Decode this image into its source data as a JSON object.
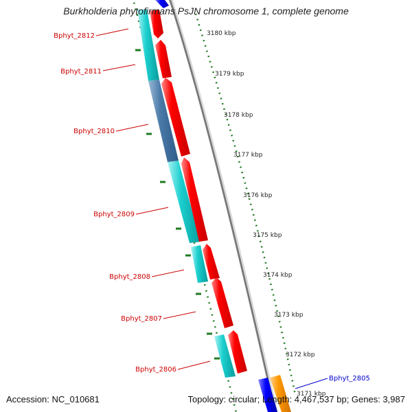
{
  "title": "Burkholderia phytofirmans PsJN chromosome 1, complete genome",
  "accession_text": "Accession: NC_010681",
  "summary_text": "Topology: circular; Length: 4,467,537 bp; Genes: 3,987",
  "colors": {
    "label_red": "#cc0000",
    "label_blue": "#0000cc",
    "forward_gene": "#ff0000",
    "cds_cyan": "#19cccc",
    "cds_blue": "#4a7aa8",
    "axis_gray": "#888888",
    "tick_green": "#207a20",
    "orange": "#ff9900",
    "blue": "#0000ff"
  },
  "scale": {
    "labels": [
      "3180 kbp",
      "3179 kbp",
      "3178 kbp",
      "3177 kbp",
      "3176 kbp",
      "3175 kbp",
      "3174 kbp",
      "3173 kbp",
      "3172 kbp",
      "3171 kbp"
    ]
  },
  "genes": [
    {
      "label": "Bphyt_2812",
      "color": "label_red"
    },
    {
      "label": "Bphyt_2811",
      "color": "label_red"
    },
    {
      "label": "Bphyt_2810",
      "color": "label_red"
    },
    {
      "label": "Bphyt_2809",
      "color": "label_red"
    },
    {
      "label": "Bphyt_2808",
      "color": "label_red"
    },
    {
      "label": "Bphyt_2807",
      "color": "label_red"
    },
    {
      "label": "Bphyt_2806",
      "color": "label_red"
    },
    {
      "label": "Bphyt_2805",
      "color": "label_blue"
    }
  ]
}
